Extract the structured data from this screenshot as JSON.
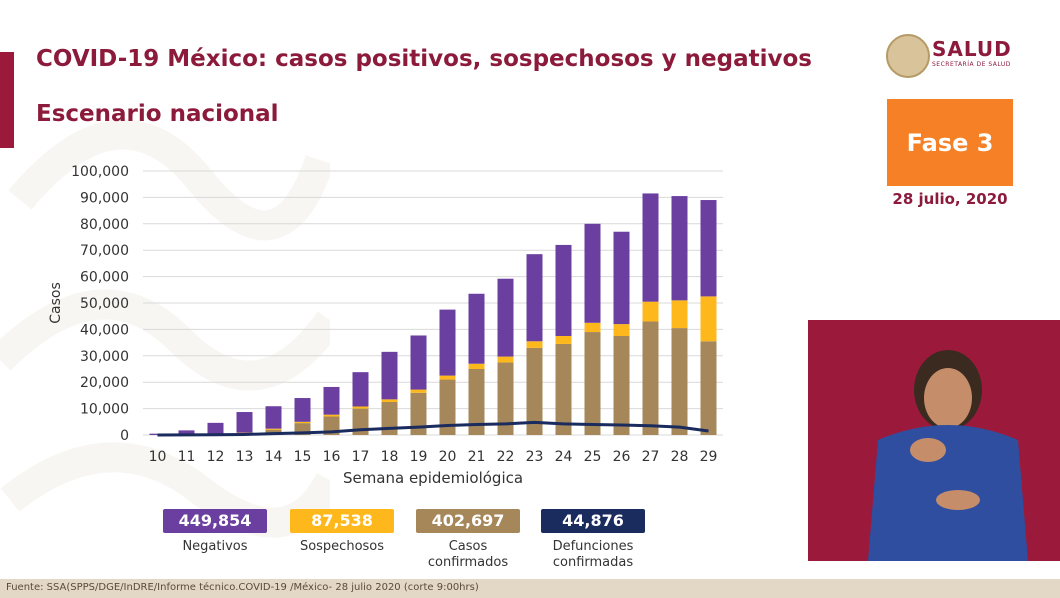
{
  "header": {
    "title": "COVID-19 México: casos positivos, sospechosos y negativos",
    "subtitle": "Escenario nacional"
  },
  "logo": {
    "title": "SALUD",
    "subtitle": "SECRETARÍA DE SALUD"
  },
  "badge": {
    "phase": "Fase 3",
    "date": "28 julio, 2020"
  },
  "legend": [
    {
      "value": "449,854",
      "label": "Negativos",
      "color": "#6b3fa0"
    },
    {
      "value": "87,538",
      "label": "Sospechosos",
      "color": "#ffb81c"
    },
    {
      "value": "402,697",
      "label": "Casos confirmados",
      "color": "#a6875a"
    },
    {
      "value": "44,876",
      "label": "Defunciones confirmadas",
      "color": "#1a2b5e"
    }
  ],
  "footer": {
    "source": "Fuente: SSA(SPPS/DGE/InDRE/Informe técnico.COVID-19 /México- 28 julio 2020 (corte 9:00hrs)"
  },
  "colors": {
    "accent": "#8c1a3b",
    "phase": "#f58025"
  },
  "chart_data": {
    "type": "bar",
    "stacked": true,
    "xlabel": "Semana epidemiológica",
    "ylabel": "Casos",
    "ylim": [
      0,
      100000
    ],
    "yticks": [
      "0",
      "10,000",
      "20,000",
      "30,000",
      "40,000",
      "50,000",
      "60,000",
      "70,000",
      "80,000",
      "90,000",
      "100,000"
    ],
    "grid": true,
    "categories": [
      "10",
      "11",
      "12",
      "13",
      "14",
      "15",
      "16",
      "17",
      "18",
      "19",
      "20",
      "21",
      "22",
      "23",
      "24",
      "25",
      "26",
      "27",
      "28",
      "29"
    ],
    "series": [
      {
        "name": "Casos confirmados",
        "color": "#a6875a",
        "values": [
          0,
          100,
          300,
          700,
          2000,
          4500,
          7000,
          10000,
          12500,
          16000,
          21000,
          25000,
          27500,
          33000,
          34500,
          39000,
          37500,
          43000,
          40500,
          35500
        ]
      },
      {
        "name": "Sospechosos",
        "color": "#ffb81c",
        "values": [
          0,
          50,
          100,
          200,
          400,
          500,
          700,
          800,
          1000,
          1200,
          1500,
          2000,
          2200,
          2500,
          3000,
          3500,
          4500,
          7500,
          10500,
          17000
        ]
      },
      {
        "name": "Negativos",
        "color": "#6b3fa0",
        "values": [
          500,
          1600,
          4200,
          7800,
          8500,
          9000,
          10500,
          13000,
          18000,
          20500,
          25000,
          26500,
          29500,
          33000,
          34500,
          37500,
          35000,
          41000,
          39500,
          36500
        ]
      }
    ],
    "line": {
      "name": "Defunciones confirmadas",
      "color": "#1a2b5e",
      "values": [
        0,
        50,
        100,
        200,
        500,
        800,
        1200,
        2000,
        2500,
        3000,
        3600,
        4000,
        4200,
        4800,
        4200,
        4000,
        3800,
        3500,
        3000,
        1500
      ]
    }
  }
}
